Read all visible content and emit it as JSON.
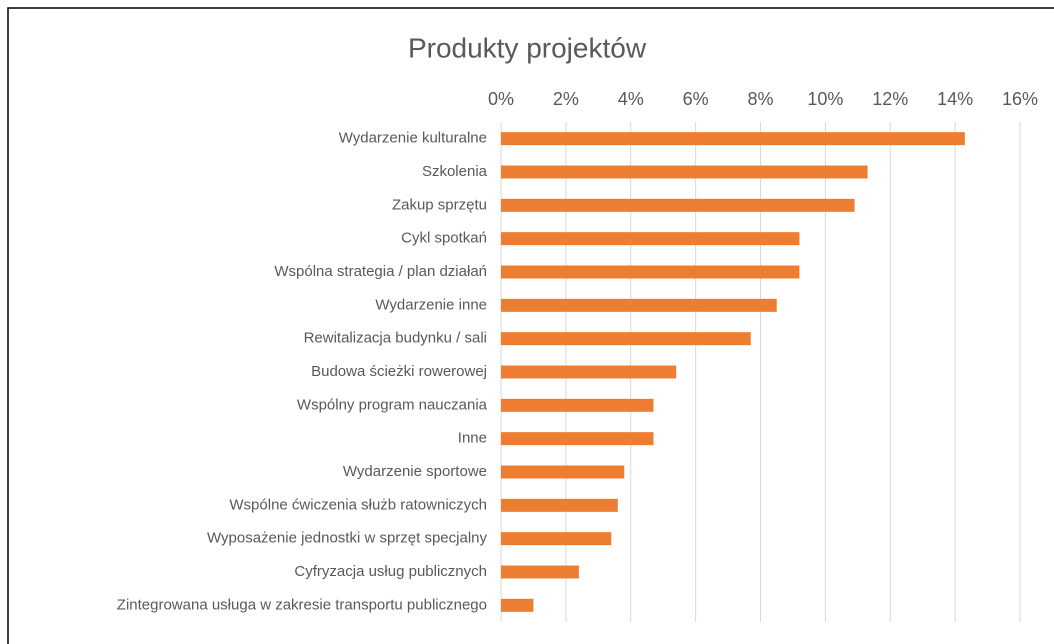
{
  "chart_data": {
    "type": "bar",
    "orientation": "horizontal",
    "title": "Produkty projektów",
    "categories": [
      "Wydarzenie kulturalne",
      "Szkolenia",
      "Zakup sprzętu",
      "Cykl spotkań",
      "Wspólna strategia / plan działań",
      "Wydarzenie inne",
      "Rewitalizacja budynku / sali",
      "Budowa ścieżki rowerowej",
      "Wspólny program nauczania",
      "Inne",
      "Wydarzenie sportowe",
      "Wspólne ćwiczenia służb ratowniczych",
      "Wyposażenie jednostki w sprzęt specjalny",
      "Cyfryzacja usług publicznych",
      "Zintegrowana usługa w zakresie transportu publicznego"
    ],
    "values": [
      14.3,
      11.3,
      10.9,
      9.2,
      9.2,
      8.5,
      7.7,
      5.4,
      4.7,
      4.7,
      3.8,
      3.6,
      3.4,
      2.4,
      1.0
    ],
    "color": "#ed7d31",
    "xlim": [
      0,
      16
    ],
    "xticks": [
      {
        "value": 0,
        "label": "0%"
      },
      {
        "value": 2,
        "label": "2%"
      },
      {
        "value": 4,
        "label": "4%"
      },
      {
        "value": 6,
        "label": "6%"
      },
      {
        "value": 8,
        "label": "8%"
      },
      {
        "value": 10,
        "label": "10%"
      },
      {
        "value": 12,
        "label": "12%"
      },
      {
        "value": 14,
        "label": "14%"
      },
      {
        "value": 16,
        "label": "16%"
      }
    ],
    "grid": true
  }
}
